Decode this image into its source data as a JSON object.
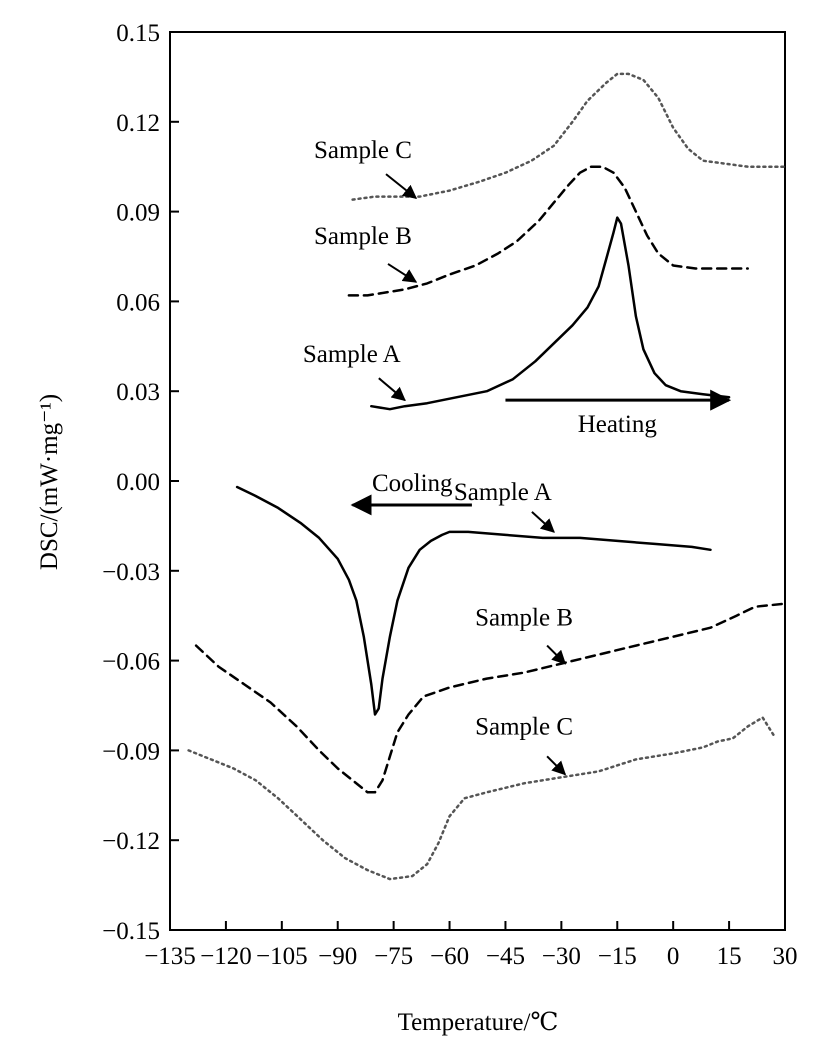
{
  "chart_data": {
    "type": "line",
    "xlabel": "Temperature/℃",
    "ylabel": "DSC/(mW·mg⁻¹)",
    "xlim": [
      -135,
      30
    ],
    "ylim": [
      -0.15,
      0.15
    ],
    "x_ticks": [
      -135,
      -120,
      -105,
      -90,
      -75,
      -60,
      -45,
      -30,
      -15,
      0,
      15,
      30
    ],
    "y_ticks": [
      -0.15,
      -0.12,
      -0.09,
      -0.06,
      -0.03,
      0.0,
      0.03,
      0.06,
      0.09,
      0.12,
      0.15
    ],
    "x_tick_labels": [
      "−135",
      "−120",
      "−105",
      "−90",
      "−75",
      "−60",
      "−45",
      "−30",
      "−15",
      "0",
      "15",
      "30"
    ],
    "y_tick_labels": [
      "−0.15",
      "−0.12",
      "−0.09",
      "−0.06",
      "−0.03",
      "0.00",
      "0.03",
      "0.06",
      "0.09",
      "0.12",
      "0.15"
    ],
    "grid": false,
    "legend": "none",
    "series": [
      {
        "name": "Sample C",
        "group": "heating",
        "style": "dotted",
        "x": [
          -86,
          -80,
          -74,
          -68,
          -60,
          -52,
          -45,
          -38,
          -32,
          -27,
          -23,
          -18,
          -15,
          -12,
          -8,
          -4,
          0,
          4,
          8,
          14,
          20,
          30
        ],
        "y": [
          0.094,
          0.095,
          0.095,
          0.095,
          0.097,
          0.1,
          0.103,
          0.107,
          0.112,
          0.12,
          0.127,
          0.133,
          0.136,
          0.136,
          0.134,
          0.128,
          0.118,
          0.111,
          0.107,
          0.106,
          0.105,
          0.105
        ]
      },
      {
        "name": "Sample B",
        "group": "heating",
        "style": "dashed",
        "x": [
          -87,
          -82,
          -77,
          -72,
          -66,
          -60,
          -53,
          -47,
          -42,
          -36,
          -32,
          -28,
          -25,
          -22,
          -19,
          -16,
          -13,
          -10,
          -7,
          -4,
          0,
          6,
          12,
          20
        ],
        "y": [
          0.062,
          0.062,
          0.063,
          0.064,
          0.066,
          0.069,
          0.072,
          0.076,
          0.08,
          0.087,
          0.093,
          0.099,
          0.103,
          0.105,
          0.105,
          0.103,
          0.098,
          0.09,
          0.082,
          0.076,
          0.072,
          0.071,
          0.071,
          0.071
        ]
      },
      {
        "name": "Sample A",
        "group": "heating",
        "style": "solid",
        "x": [
          -81,
          -76,
          -72,
          -66,
          -58,
          -50,
          -43,
          -37,
          -32,
          -27,
          -23,
          -20,
          -18,
          -16,
          -15,
          -14,
          -12,
          -10,
          -8,
          -5,
          -2,
          2,
          8,
          15
        ],
        "y": [
          0.025,
          0.024,
          0.025,
          0.026,
          0.028,
          0.03,
          0.034,
          0.04,
          0.046,
          0.052,
          0.058,
          0.065,
          0.074,
          0.083,
          0.088,
          0.086,
          0.072,
          0.055,
          0.044,
          0.036,
          0.032,
          0.03,
          0.029,
          0.028
        ]
      },
      {
        "name": "Sample A",
        "group": "cooling",
        "style": "solid",
        "x": [
          -117,
          -112,
          -106,
          -100,
          -95,
          -90,
          -87,
          -85,
          -83,
          -81,
          -80,
          -79,
          -78,
          -76,
          -74,
          -71,
          -68,
          -65,
          -62,
          -60,
          -55,
          -45,
          -35,
          -25,
          -15,
          -5,
          5,
          10
        ],
        "y": [
          -0.002,
          -0.005,
          -0.009,
          -0.014,
          -0.019,
          -0.026,
          -0.033,
          -0.04,
          -0.052,
          -0.068,
          -0.078,
          -0.076,
          -0.066,
          -0.052,
          -0.04,
          -0.029,
          -0.023,
          -0.02,
          -0.018,
          -0.017,
          -0.017,
          -0.018,
          -0.019,
          -0.019,
          -0.02,
          -0.021,
          -0.022,
          -0.023
        ]
      },
      {
        "name": "Sample B",
        "group": "cooling",
        "style": "dashed",
        "x": [
          -128,
          -122,
          -115,
          -108,
          -101,
          -95,
          -90,
          -86,
          -82,
          -80,
          -78,
          -76,
          -74,
          -71,
          -67,
          -60,
          -50,
          -40,
          -30,
          -20,
          -10,
          0,
          10,
          17,
          22,
          30
        ],
        "y": [
          -0.055,
          -0.062,
          -0.068,
          -0.074,
          -0.082,
          -0.09,
          -0.096,
          -0.1,
          -0.104,
          -0.104,
          -0.1,
          -0.092,
          -0.084,
          -0.078,
          -0.072,
          -0.069,
          -0.066,
          -0.064,
          -0.061,
          -0.058,
          -0.055,
          -0.052,
          -0.049,
          -0.045,
          -0.042,
          -0.041
        ]
      },
      {
        "name": "Sample C",
        "group": "cooling",
        "style": "dotted",
        "x": [
          -130,
          -124,
          -118,
          -112,
          -106,
          -100,
          -94,
          -88,
          -82,
          -76,
          -70,
          -66,
          -63,
          -60,
          -56,
          -50,
          -40,
          -30,
          -20,
          -10,
          0,
          8,
          12,
          16,
          20,
          24,
          27
        ],
        "y": [
          -0.09,
          -0.093,
          -0.096,
          -0.1,
          -0.106,
          -0.113,
          -0.12,
          -0.126,
          -0.13,
          -0.133,
          -0.132,
          -0.128,
          -0.121,
          -0.112,
          -0.106,
          -0.104,
          -0.101,
          -0.099,
          -0.097,
          -0.093,
          -0.091,
          -0.089,
          -0.087,
          -0.086,
          -0.082,
          -0.079,
          -0.085
        ]
      }
    ],
    "annotations": [
      {
        "text": "Sample C",
        "arrow_to": [
          -69,
          0.0945
        ]
      },
      {
        "text": "Sample B",
        "arrow_to": [
          -69,
          0.0665
        ]
      },
      {
        "text": "Sample A",
        "arrow_to": [
          -72,
          0.027
        ]
      },
      {
        "text": "Heating",
        "arrow": [
          -45,
          15
        ]
      },
      {
        "text": "Cooling",
        "arrow": [
          -54,
          -86
        ]
      },
      {
        "text": "Sample A",
        "arrow_to": [
          -32,
          -0.017
        ]
      },
      {
        "text": "Sample B",
        "arrow_to": [
          -29,
          -0.061
        ]
      },
      {
        "text": "Sample C",
        "arrow_to": [
          -29,
          -0.098
        ]
      }
    ]
  }
}
